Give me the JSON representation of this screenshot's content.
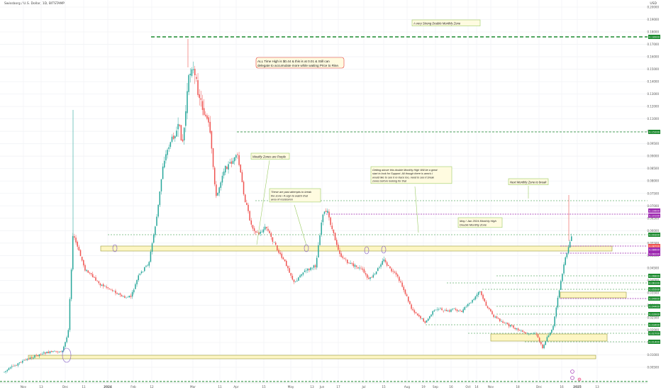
{
  "header": {
    "symbol_line": "Swissborg / U.S. Dollar, 1D, BITSTAMP",
    "currency": "USD"
  },
  "colors": {
    "up": "#26a69a",
    "down": "#ef5350",
    "level_green": "#1b8a2e",
    "level_purple": "#9c27b0",
    "zone_fill": "#fdf6c3",
    "zone_border": "#9a9a3a",
    "note_bg": "#fffbe0",
    "note_border": "#9ccc65",
    "callout_border": "#e53935"
  },
  "chart_data": {
    "type": "candlestick",
    "title": "",
    "x_tick_labels": [
      "Nov",
      "13",
      "Dec",
      "11",
      "2024",
      "Feb",
      "12",
      "Mar",
      "11",
      "Apr",
      "15",
      "May",
      "13",
      "Jun",
      "17",
      "Jul",
      "15",
      "Aug",
      "19",
      "Sep",
      "16",
      "Oct",
      "14",
      "Nov",
      "18",
      "Dec",
      "16",
      "2025",
      "13"
    ],
    "y_tick_labels": [
      "0.20000",
      "0.19000",
      "0.18000",
      "0.17000",
      "0.16000",
      "0.15000",
      "0.14000",
      "0.13000",
      "0.12000",
      "0.11000",
      "0.10000",
      "0.09500",
      "0.09000",
      "0.08500",
      "0.08000",
      "0.07500",
      "0.07000",
      "0.06500",
      "0.06000",
      "0.05500",
      "0.05000",
      "0.04500",
      "0.04000",
      "0.03500",
      "0.03000",
      "0.02500",
      "0.02000",
      "0.01500",
      "0.01000",
      "0.00500"
    ],
    "price_badges": [
      {
        "value": "0.18900",
        "color": "#1b8a2e"
      },
      {
        "value": "0.15200",
        "color": "#1b8a2e"
      },
      {
        "value": "0.10600",
        "color": "#9c27b0"
      },
      {
        "value": "0.10100",
        "color": "#9c27b0"
      },
      {
        "value": "0.09300",
        "color": "#1b8a2e"
      },
      {
        "value": "0.08700",
        "color": "#ef5350"
      },
      {
        "value": "0.08600",
        "color": "#9c27b0"
      },
      {
        "value": "0.08200",
        "color": "#9c27b0"
      },
      {
        "value": "0.06800",
        "color": "#1b8a2e"
      },
      {
        "value": "0.06100",
        "color": "#1b8a2e"
      },
      {
        "value": "0.05500",
        "color": "#1b8a2e"
      },
      {
        "value": "0.04900",
        "color": "#1b8a2e"
      },
      {
        "value": "0.04400",
        "color": "#1b8a2e"
      },
      {
        "value": "0.03900",
        "color": "#1b8a2e"
      },
      {
        "value": "0.03400",
        "color": "#1b8a2e"
      },
      {
        "value": "0.02700",
        "color": "#1b8a2e"
      },
      {
        "value": "0.01400",
        "color": "#1b8a2e"
      }
    ],
    "annotations": [
      "A very Strong Double Monthly Zone",
      "ALL Time High is $0.44 & this is at 0.01 & Still can delegate to accumulate more while waiting Price to Rise.",
      "Weekly Zones are Purple",
      "These are past attempts to break the zone / A sign to watch that area of resistance",
      "Getting above this double Monthly High Will be a great start to look for Support. All though there is area's I would like to see it re-trace too, need to see it break zones before looking for that",
      "May / Jan 2024 Monthly High Double Monthly Zone",
      "Next Monthly Zone to break"
    ],
    "legend": "none",
    "grid": true
  }
}
